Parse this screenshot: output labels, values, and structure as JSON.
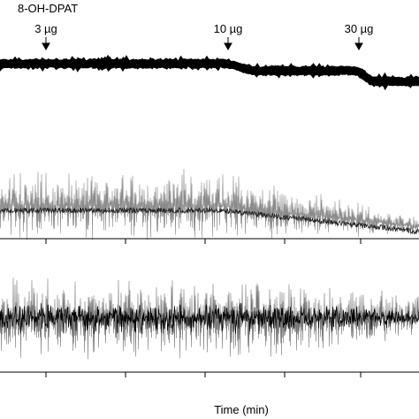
{
  "figure": {
    "drug_label": "8-OH-DPAT",
    "doses": [
      "3 µg",
      "10 µg",
      "30 µg"
    ],
    "x_axis_label": "Time (min)"
  }
}
